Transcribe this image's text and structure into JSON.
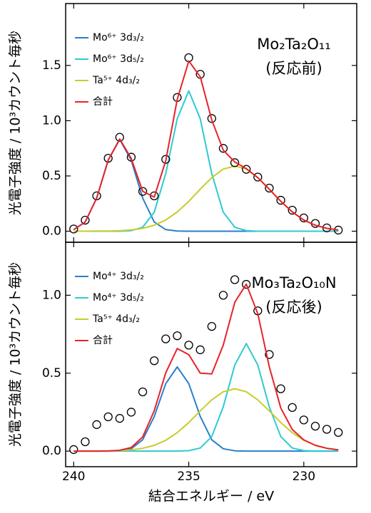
{
  "chart_data": [
    {
      "type": "line",
      "ylabel": "光電子強度 / 10³カウント毎秒",
      "annotations": [
        "Mo₂Ta₂O₁₁",
        "(反応前)"
      ],
      "x": [
        240,
        239.5,
        239,
        238.5,
        238,
        237.5,
        237,
        236.5,
        236,
        235.5,
        235,
        234.5,
        234,
        233.5,
        233,
        232.5,
        232,
        231.5,
        231,
        230.5,
        230,
        229.5,
        229,
        228.5
      ],
      "xlim": [
        240.35,
        227.7
      ],
      "xticks": [
        240,
        235,
        230
      ],
      "ylim": [
        -0.1,
        2.06
      ],
      "yticks": [
        {
          "value": 0,
          "label": "0.0"
        },
        0.5,
        {
          "value": 1,
          "label": "1.0"
        },
        1.5
      ],
      "series": [
        {
          "name": "Mo⁶⁺ 3d₃/₂",
          "color": "#2a7fc8",
          "values": [
            0.014,
            0.083,
            0.299,
            0.643,
            0.83,
            0.643,
            0.299,
            0.083,
            0.014,
            0.001,
            0,
            0,
            0,
            0,
            0,
            0,
            0,
            0,
            0,
            0,
            0,
            0,
            0,
            0
          ]
        },
        {
          "name": "Mo⁶⁺ 3d₅/₂",
          "color": "#2ecad0",
          "values": [
            0,
            0,
            0,
            0,
            0,
            0.005,
            0.036,
            0.172,
            0.522,
            1.017,
            1.27,
            1.017,
            0.522,
            0.172,
            0.036,
            0.005,
            0,
            0,
            0,
            0,
            0,
            0,
            0,
            0
          ]
        },
        {
          "name": "Ta⁵⁺ 4d₃/₂",
          "color": "#c8cc2a",
          "values": [
            0,
            0,
            0.001,
            0.002,
            0.004,
            0.011,
            0.026,
            0.054,
            0.101,
            0.174,
            0.27,
            0.38,
            0.485,
            0.562,
            0.59,
            0.562,
            0.485,
            0.38,
            0.27,
            0.174,
            0.101,
            0.054,
            0.026,
            0.011
          ]
        },
        {
          "name": "合計",
          "color": "#e8222a",
          "values": [
            0.014,
            0.083,
            0.3,
            0.645,
            0.834,
            0.659,
            0.361,
            0.309,
            0.637,
            1.192,
            1.54,
            1.397,
            1.007,
            0.734,
            0.626,
            0.567,
            0.485,
            0.38,
            0.27,
            0.174,
            0.101,
            0.054,
            0.026,
            0.011
          ]
        }
      ],
      "measured": {
        "marker": "circle",
        "color": "#000000",
        "values": [
          0.02,
          0.1,
          0.32,
          0.66,
          0.85,
          0.67,
          0.36,
          0.32,
          0.65,
          1.21,
          1.57,
          1.42,
          1.02,
          0.75,
          0.62,
          0.56,
          0.49,
          0.39,
          0.28,
          0.19,
          0.12,
          0.07,
          0.03,
          0.01
        ]
      }
    },
    {
      "type": "line",
      "ylabel": "光電子強度 / 10³カウント毎秒",
      "xlabel": "結合エネルギー / eV",
      "annotations": [
        "Mo₃Ta₂O₁₀N",
        "(反応後)"
      ],
      "x": [
        240,
        239.5,
        239,
        238.5,
        238,
        237.5,
        237,
        236.5,
        236,
        235.5,
        235,
        234.5,
        234,
        233.5,
        233,
        232.5,
        232,
        231.5,
        231,
        230.5,
        230,
        229.5,
        229,
        228.5
      ],
      "xlim": [
        240.35,
        227.7
      ],
      "xticks": [
        240,
        235,
        230
      ],
      "ylim": [
        -0.1,
        1.34
      ],
      "yticks": [
        {
          "value": 0,
          "label": "0.0"
        },
        0.5,
        {
          "value": 1,
          "label": "1.0"
        }
      ],
      "series": [
        {
          "name": "Mo⁴⁺ 3d₃/₂",
          "color": "#2a7fc8",
          "values": [
            0,
            0,
            0,
            0,
            0.002,
            0.015,
            0.073,
            0.222,
            0.433,
            0.54,
            0.433,
            0.222,
            0.073,
            0.015,
            0.002,
            0,
            0,
            0,
            0,
            0,
            0,
            0,
            0,
            0
          ]
        },
        {
          "name": "Mo⁴⁺ 3d₅/₂",
          "color": "#2ecad0",
          "values": [
            0,
            0,
            0,
            0,
            0,
            0,
            0,
            0,
            0,
            0,
            0.003,
            0.02,
            0.093,
            0.284,
            0.553,
            0.69,
            0.553,
            0.284,
            0.093,
            0.02,
            0.003,
            0,
            0,
            0
          ]
        },
        {
          "name": "Ta⁵⁺ 4d₃/₂",
          "color": "#c8cc2a",
          "values": [
            0,
            0,
            0,
            0.001,
            0.003,
            0.008,
            0.018,
            0.037,
            0.069,
            0.118,
            0.183,
            0.258,
            0.329,
            0.381,
            0.4,
            0.381,
            0.329,
            0.258,
            0.183,
            0.118,
            0.069,
            0.037,
            0.018,
            0.008
          ]
        },
        {
          "name": "合計",
          "color": "#e8222a",
          "values": [
            0,
            0,
            0,
            0.001,
            0.005,
            0.023,
            0.091,
            0.259,
            0.502,
            0.658,
            0.619,
            0.5,
            0.495,
            0.68,
            0.955,
            1.071,
            0.882,
            0.542,
            0.276,
            0.138,
            0.072,
            0.037,
            0.018,
            0.008
          ]
        }
      ],
      "measured": {
        "marker": "circle",
        "color": "#000000",
        "values": [
          0.01,
          0.06,
          0.17,
          0.22,
          0.21,
          0.25,
          0.38,
          0.58,
          0.72,
          0.74,
          0.68,
          0.65,
          0.8,
          1.0,
          1.1,
          1.07,
          0.9,
          0.62,
          0.4,
          0.28,
          0.2,
          0.16,
          0.14,
          0.12
        ]
      }
    }
  ]
}
